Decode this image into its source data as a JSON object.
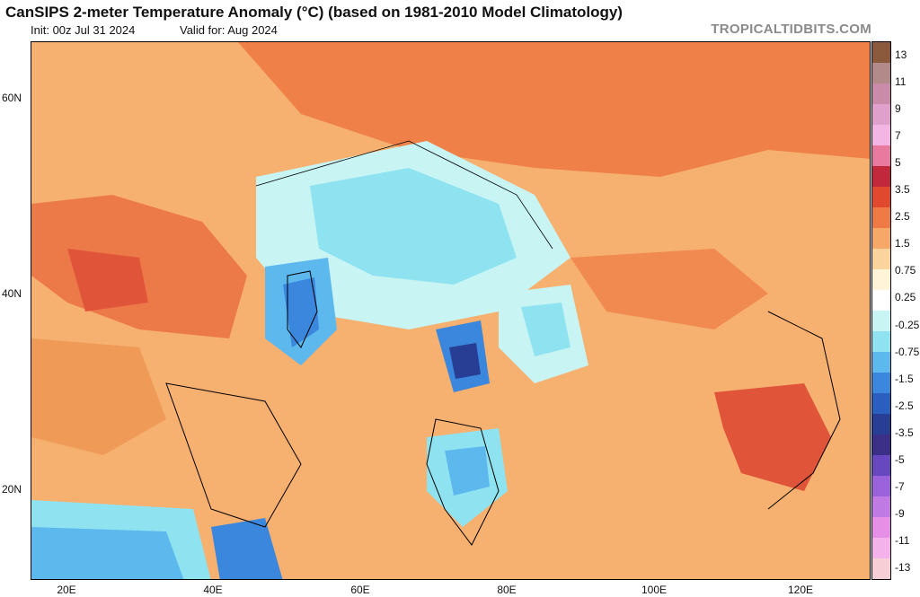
{
  "header": {
    "title": "CanSIPS 2-meter Temperature Anomaly (°C) (based on 1981-2010 Model Climatology)",
    "init": "Init: 00z Jul 31 2024",
    "valid": "Valid for: Aug 2024",
    "site": "TROPICALTIDBITS.COM"
  },
  "map": {
    "lat_labels": [
      "60N",
      "40N",
      "20N"
    ],
    "lon_labels": [
      "20E",
      "40E",
      "60E",
      "80E",
      "100E",
      "120E"
    ]
  },
  "colorbar": {
    "labels": [
      "13",
      "11",
      "9",
      "7",
      "5",
      "3.5",
      "2.5",
      "1.5",
      "0.75",
      "0.25",
      "-0.25",
      "-0.75",
      "-1.5",
      "-2.5",
      "-3.5",
      "-5",
      "-7",
      "-9",
      "-11",
      "-13"
    ],
    "colors": [
      "#8b5a3c",
      "#b28a8a",
      "#c98ba8",
      "#dfa1cc",
      "#f3b6e4",
      "#e87aa0",
      "#c2283c",
      "#e0492d",
      "#ef7a45",
      "#f6a868",
      "#fbd39c",
      "#fff3d8",
      "#ffffff",
      "#c8f4f4",
      "#8fe3f0",
      "#5db8ee",
      "#3a87dd",
      "#2a5fc0",
      "#283e95",
      "#3b2f88",
      "#6848c0",
      "#9a63dc",
      "#c07ae4",
      "#e58fe6",
      "#f3b3ea",
      "#f6cfd6"
    ]
  }
}
